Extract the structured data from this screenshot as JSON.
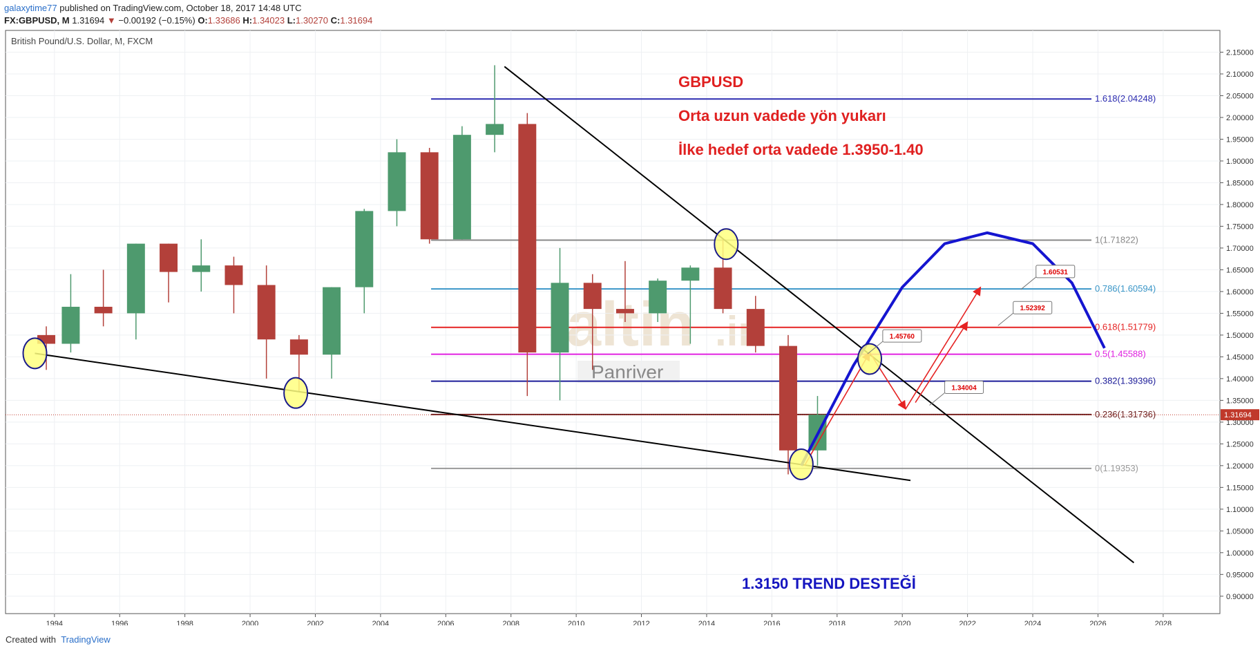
{
  "header": {
    "user": "galaxytime77",
    "published": "published on TradingView.com, October 18, 2017 14:48 UTC",
    "symbol": "FX:GBPUSD, M",
    "last": "1.31694",
    "change": "−0.00192 (−0.15%)",
    "ohlc": [
      {
        "key": "O:",
        "value": "1.33686"
      },
      {
        "key": "H:",
        "value": "1.34023"
      },
      {
        "key": "L:",
        "value": "1.30270"
      },
      {
        "key": "C:",
        "value": "1.31694"
      }
    ]
  },
  "chart_data": {
    "type": "candlestick",
    "title": "British Pound/U.S. Dollar, M, FXCM",
    "x": [
      1993.75,
      1994.5,
      1995.5,
      1996.5,
      1997.5,
      1998.5,
      1999.5,
      2000.5,
      2001.5,
      2002.5,
      2003.5,
      2004.5,
      2005.5,
      2006.5,
      2007.5,
      2008.5,
      2009.5,
      2010.5,
      2011.5,
      2012.5,
      2013.5,
      2014.5,
      2015.5,
      2016.5,
      2017.4
    ],
    "open": [
      1.5,
      1.48,
      1.565,
      1.55,
      1.71,
      1.645,
      1.66,
      1.615,
      1.49,
      1.455,
      1.61,
      1.785,
      1.92,
      1.72,
      1.96,
      1.985,
      1.46,
      1.62,
      1.56,
      1.55,
      1.625,
      1.655,
      1.56,
      1.475,
      1.235
    ],
    "high": [
      1.52,
      1.64,
      1.65,
      1.71,
      1.71,
      1.72,
      1.68,
      1.66,
      1.5,
      1.61,
      1.79,
      1.95,
      1.93,
      1.98,
      2.12,
      2.01,
      1.7,
      1.64,
      1.67,
      1.63,
      1.66,
      1.72,
      1.59,
      1.5,
      1.36
    ],
    "low": [
      1.42,
      1.46,
      1.52,
      1.49,
      1.575,
      1.6,
      1.55,
      1.4,
      1.37,
      1.4,
      1.55,
      1.75,
      1.71,
      1.72,
      1.92,
      1.36,
      1.35,
      1.42,
      1.53,
      1.53,
      1.48,
      1.55,
      1.46,
      1.18,
      1.2
    ],
    "close": [
      1.48,
      1.565,
      1.55,
      1.71,
      1.645,
      1.66,
      1.615,
      1.49,
      1.455,
      1.61,
      1.785,
      1.92,
      1.72,
      1.96,
      1.985,
      1.46,
      1.62,
      1.56,
      1.55,
      1.625,
      1.655,
      1.56,
      1.475,
      1.235,
      1.317
    ],
    "up_color": "#4e9a6e",
    "down_color": "#b3403a",
    "xlim": [
      1992.5,
      2029.74
    ],
    "xticks": [
      1994,
      1996,
      1998,
      2000,
      2002,
      2004,
      2006,
      2008,
      2010,
      2012,
      2014,
      2016,
      2018,
      2020,
      2022,
      2024,
      2026,
      2028
    ],
    "ylim": [
      0.86,
      2.2
    ],
    "yticks": [
      {
        "value": 0.9,
        "label": "0.90000"
      },
      {
        "value": 0.95,
        "label": "0.95000"
      },
      {
        "value": 1.0,
        "label": "1.00000"
      },
      {
        "value": 1.05,
        "label": "1.05000"
      },
      {
        "value": 1.1,
        "label": "1.10000"
      },
      {
        "value": 1.15,
        "label": "1.15000"
      },
      {
        "value": 1.2,
        "label": "1.20000"
      },
      {
        "value": 1.25,
        "label": "1.25000"
      },
      {
        "value": 1.3,
        "label": "1.30000"
      },
      {
        "value": 1.35,
        "label": "1.35000"
      },
      {
        "value": 1.4,
        "label": "1.40000"
      },
      {
        "value": 1.45,
        "label": "1.45000"
      },
      {
        "value": 1.5,
        "label": "1.50000"
      },
      {
        "value": 1.55,
        "label": "1.55000"
      },
      {
        "value": 1.6,
        "label": "1.60000"
      },
      {
        "value": 1.65,
        "label": "1.65000"
      },
      {
        "value": 1.7,
        "label": "1.70000"
      },
      {
        "value": 1.75,
        "label": "1.75000"
      },
      {
        "value": 1.8,
        "label": "1.80000"
      },
      {
        "value": 1.85,
        "label": "1.85000"
      },
      {
        "value": 1.9,
        "label": "1.90000"
      },
      {
        "value": 1.95,
        "label": "1.95000"
      },
      {
        "value": 2.0,
        "label": "2.00000"
      },
      {
        "value": 2.05,
        "label": "2.05000"
      },
      {
        "value": 2.1,
        "label": "2.10000"
      },
      {
        "value": 2.15,
        "label": "2.15000"
      }
    ],
    "grid": true,
    "last_price": 1.31694,
    "last_color": "#c0392b",
    "fib_x": [
      2005.55,
      2025.8
    ],
    "fib_levels": [
      {
        "value": 2.04248,
        "label": "1.618(2.04248)",
        "color": "#2b2bb0"
      },
      {
        "value": 1.71822,
        "label": "1(1.71822)",
        "color": "#888888"
      },
      {
        "value": 1.60594,
        "label": "0.786(1.60594)",
        "color": "#3a96c8"
      },
      {
        "value": 1.51779,
        "label": "0.618(1.51779)",
        "color": "#e52222"
      },
      {
        "value": 1.45588,
        "label": "0.5(1.45588)",
        "color": "#e020e0"
      },
      {
        "value": 1.39396,
        "label": "0.382(1.39396)",
        "color": "#1c1c99"
      },
      {
        "value": 1.31736,
        "label": "0.236(1.31736)",
        "color": "#6b1e1e"
      },
      {
        "value": 1.19353,
        "label": "0(1.19353)",
        "color": "#999999"
      }
    ],
    "trendlines": [
      {
        "x": [
          2007.8,
          2027.1
        ],
        "y": [
          2.117,
          0.977
        ],
        "color": "#000000"
      },
      {
        "x": [
          1993.4,
          2020.25
        ],
        "y": [
          1.458,
          1.166
        ],
        "color": "#000000"
      }
    ],
    "arc": {
      "x": [
        2016.9,
        2018.5,
        2020.0,
        2021.3,
        2022.6,
        2024.0,
        2025.2,
        2026.2
      ],
      "y": [
        1.2,
        1.43,
        1.61,
        1.71,
        1.735,
        1.71,
        1.62,
        1.47
      ],
      "color": "#1515d0"
    },
    "arrows": [
      {
        "x": [
          2017.0,
          2019.0
        ],
        "y": [
          1.2,
          1.46
        ]
      },
      {
        "x": [
          2019.0,
          2020.1
        ],
        "y": [
          1.46,
          1.33
        ]
      },
      {
        "x": [
          2020.1,
          2022.4
        ],
        "y": [
          1.33,
          1.61
        ]
      },
      {
        "x": [
          2020.4,
          2022.0
        ],
        "y": [
          1.345,
          1.53
        ]
      }
    ],
    "arrow_color": "#e52222",
    "circles": [
      {
        "x": 1993.4,
        "y": 1.458
      },
      {
        "x": 2001.4,
        "y": 1.367
      },
      {
        "x": 2014.6,
        "y": 1.709
      },
      {
        "x": 2016.9,
        "y": 1.203
      },
      {
        "x": 2019.0,
        "y": 1.445
      }
    ],
    "callouts": [
      {
        "label": "1.45760",
        "x": 2019.4,
        "y": 1.498
      },
      {
        "label": "1.60531",
        "x": 2024.1,
        "y": 1.646
      },
      {
        "label": "1.52392",
        "x": 2023.4,
        "y": 1.563
      },
      {
        "label": "1.34004",
        "x": 2021.3,
        "y": 1.38
      }
    ],
    "annotations": [
      "GBPUSD",
      "Orta uzun vadede yön yukarı",
      "İlke hedef orta vadede 1.3950-1.40"
    ],
    "trend_note": "1.3150 TREND DESTEĞİ",
    "watermark": [
      "altin",
      ".in",
      "Panriver"
    ]
  },
  "footer": {
    "created": "Created with",
    "brand": "TradingView"
  }
}
